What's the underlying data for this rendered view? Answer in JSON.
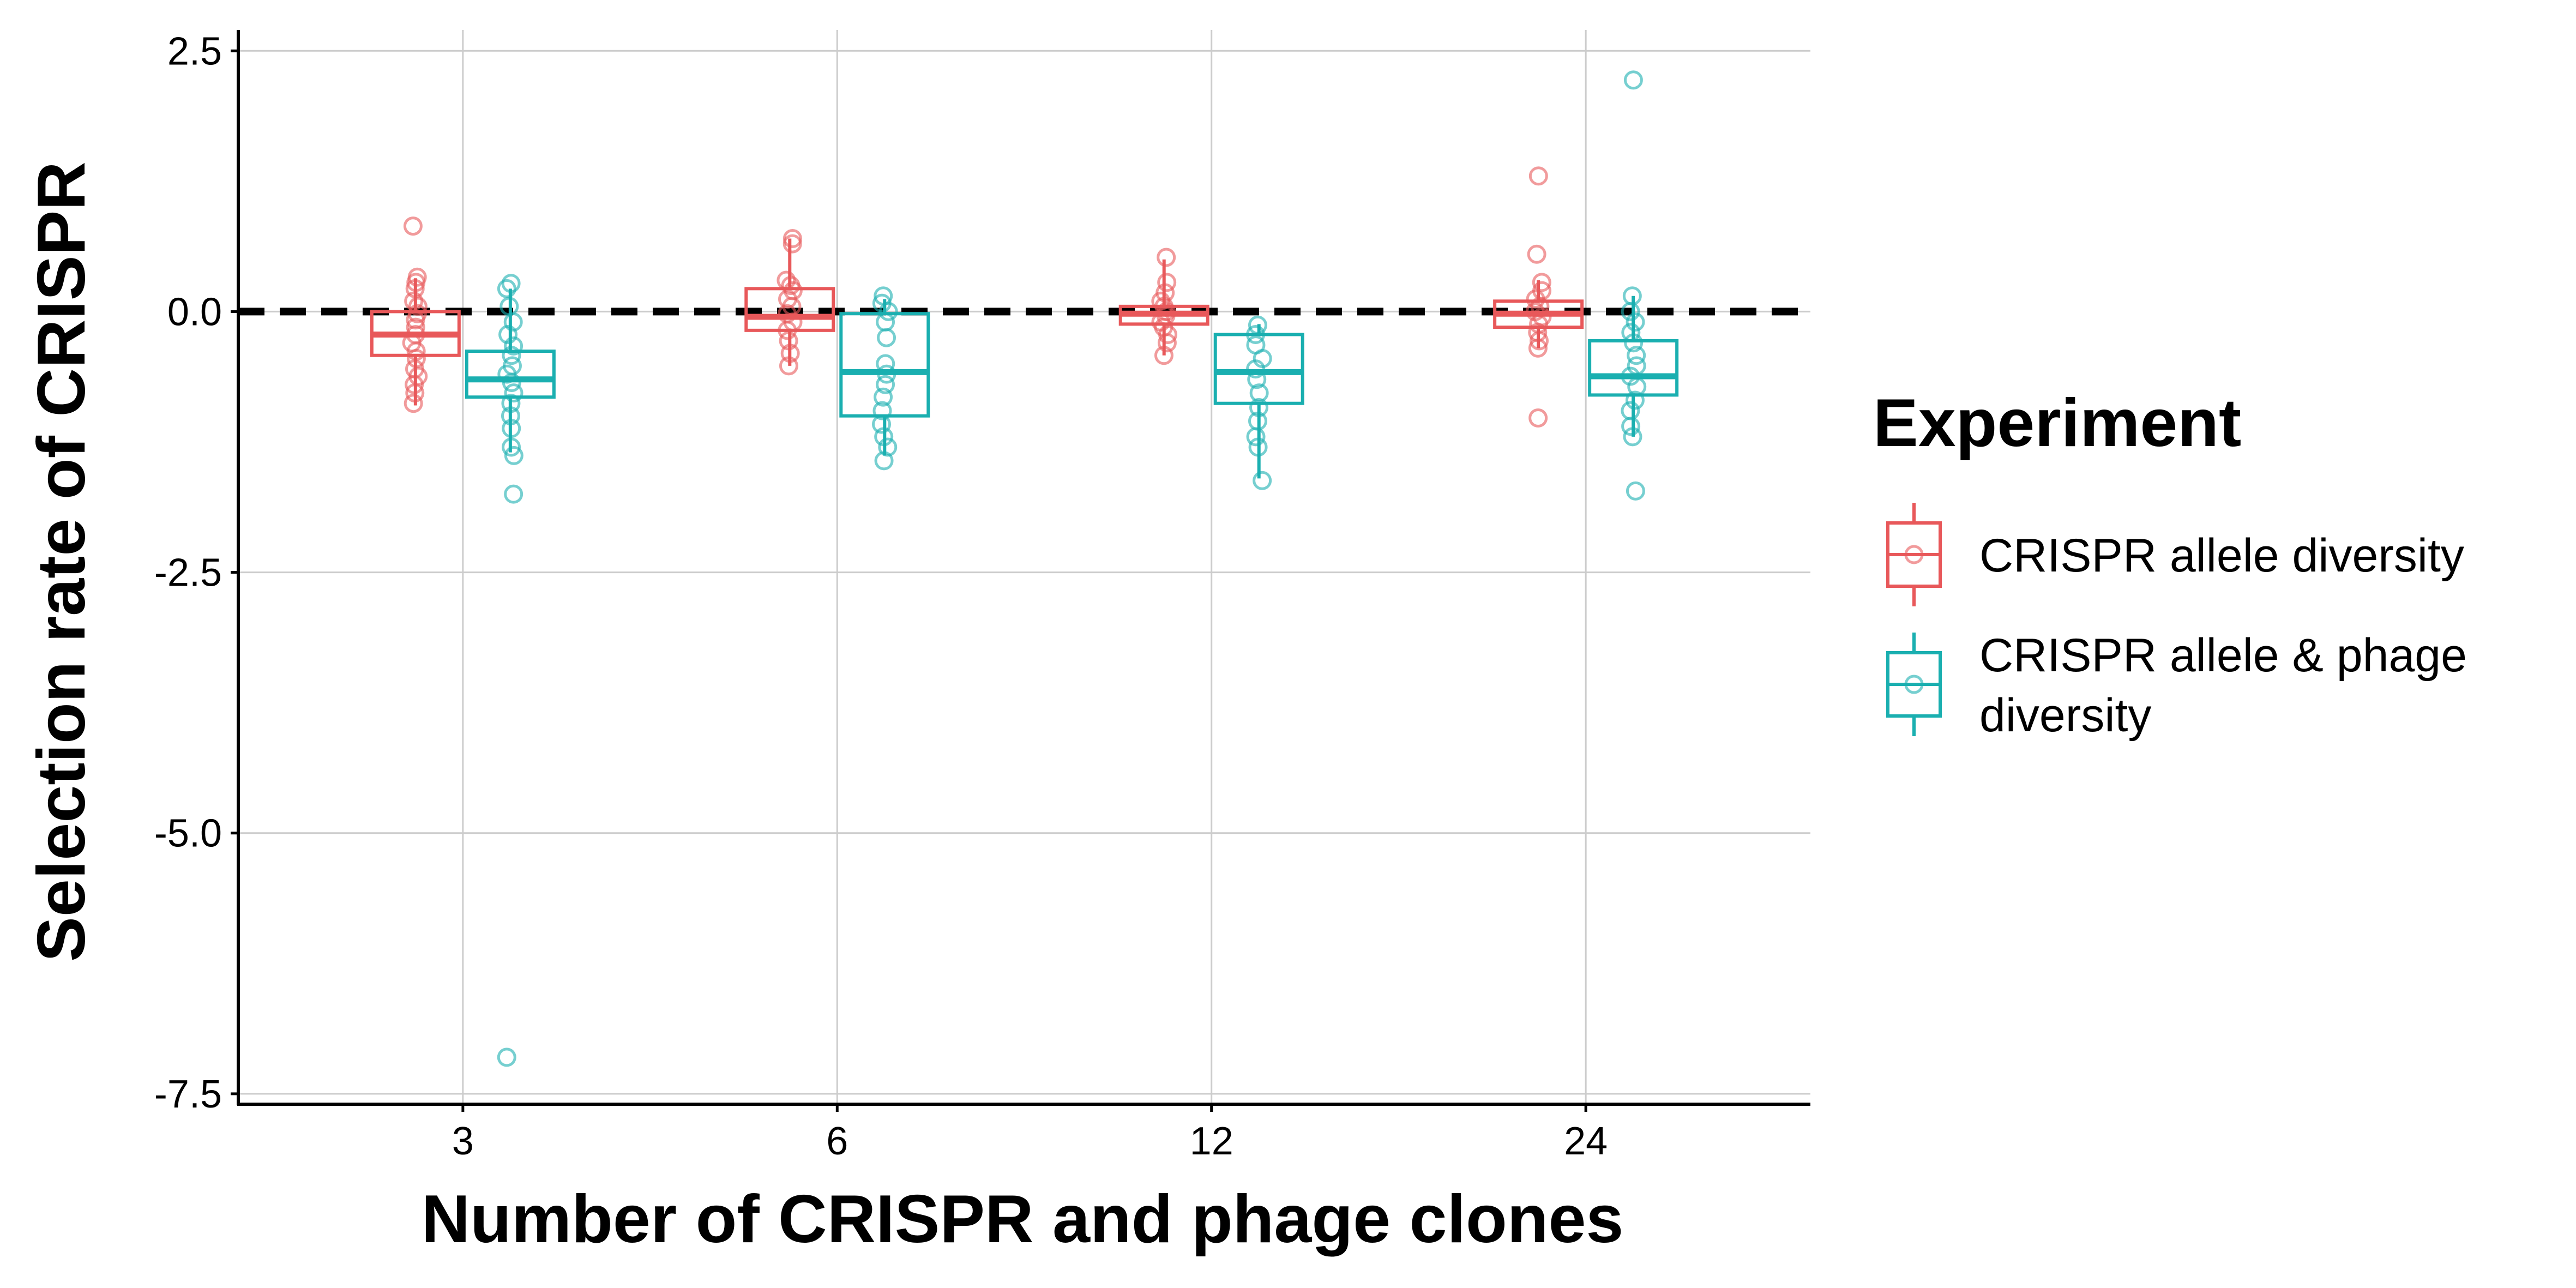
{
  "chart_data": {
    "type": "boxplot",
    "xlabel": "Number of CRISPR and phage clones",
    "ylabel": "Selection rate of CRISPR",
    "categories": [
      "3",
      "6",
      "12",
      "24"
    ],
    "ylim": [
      -7.6,
      2.7
    ],
    "yticks": [
      2.5,
      0.0,
      -2.5,
      -5.0,
      -7.5
    ],
    "ytick_labels": [
      "2.5",
      "0.0",
      "-2.5",
      "-5.0",
      "-7.5"
    ],
    "grid": true,
    "reference_line": {
      "y": 0,
      "style": "dashed",
      "color": "#000000"
    },
    "legend": {
      "title": "Experiment",
      "position": "right"
    },
    "series": [
      {
        "name": "CRISPR allele diversity",
        "legend_label": [
          "CRISPR allele diversity"
        ],
        "color": "#E8585A",
        "boxes": [
          {
            "category": "3",
            "q1": -0.42,
            "median": -0.22,
            "q3": 0.0,
            "whisker_low": -0.9,
            "whisker_high": 0.32,
            "points": [
              0.82,
              0.33,
              0.28,
              0.22,
              0.1,
              0.05,
              -0.02,
              -0.08,
              -0.15,
              -0.22,
              -0.3,
              -0.38,
              -0.45,
              -0.55,
              -0.62,
              -0.7,
              -0.78,
              -0.88
            ]
          },
          {
            "category": "6",
            "q1": -0.18,
            "median": -0.05,
            "q3": 0.22,
            "whisker_low": -0.52,
            "whisker_high": 0.7,
            "points": [
              0.7,
              0.65,
              0.3,
              0.25,
              0.2,
              0.12,
              0.05,
              -0.02,
              -0.1,
              -0.18,
              -0.28,
              -0.4,
              -0.52
            ]
          },
          {
            "category": "12",
            "q1": -0.12,
            "median": -0.02,
            "q3": 0.05,
            "whisker_low": -0.42,
            "whisker_high": 0.5,
            "points": [
              0.52,
              0.28,
              0.18,
              0.1,
              0.05,
              0.0,
              -0.04,
              -0.1,
              -0.15,
              -0.22,
              -0.3,
              -0.42
            ]
          },
          {
            "category": "24",
            "q1": -0.15,
            "median": -0.02,
            "q3": 0.1,
            "whisker_low": -0.35,
            "whisker_high": 0.3,
            "points": [
              1.3,
              0.55,
              0.28,
              0.2,
              0.12,
              0.05,
              0.0,
              -0.05,
              -0.12,
              -0.2,
              -0.28,
              -0.35,
              -1.02
            ]
          }
        ]
      },
      {
        "name": "CRISPR allele & phage diversity",
        "legend_label": [
          "CRISPR allele & phage",
          "diversity"
        ],
        "color": "#1AAFB0",
        "boxes": [
          {
            "category": "3",
            "q1": -0.82,
            "median": -0.65,
            "q3": -0.38,
            "whisker_low": -1.35,
            "whisker_high": 0.22,
            "points": [
              0.27,
              0.22,
              0.05,
              -0.1,
              -0.22,
              -0.33,
              -0.42,
              -0.52,
              -0.6,
              -0.68,
              -0.78,
              -0.88,
              -1.0,
              -1.12,
              -1.3,
              -1.38,
              -1.75,
              -7.15
            ]
          },
          {
            "category": "6",
            "q1": -1.0,
            "median": -0.58,
            "q3": -0.02,
            "whisker_low": -1.38,
            "whisker_high": 0.12,
            "points": [
              0.15,
              0.08,
              0.0,
              -0.1,
              -0.25,
              -0.5,
              -0.6,
              -0.7,
              -0.82,
              -0.95,
              -1.08,
              -1.2,
              -1.3,
              -1.43
            ]
          },
          {
            "category": "12",
            "q1": -0.88,
            "median": -0.58,
            "q3": -0.22,
            "whisker_low": -1.6,
            "whisker_high": -0.12,
            "points": [
              -0.13,
              -0.22,
              -0.32,
              -0.45,
              -0.55,
              -0.65,
              -0.78,
              -0.92,
              -1.05,
              -1.2,
              -1.3,
              -1.62
            ]
          },
          {
            "category": "24",
            "q1": -0.8,
            "median": -0.62,
            "q3": -0.28,
            "whisker_low": -1.2,
            "whisker_high": 0.15,
            "points": [
              2.22,
              0.15,
              0.0,
              -0.1,
              -0.2,
              -0.3,
              -0.42,
              -0.52,
              -0.62,
              -0.72,
              -0.85,
              -0.95,
              -1.1,
              -1.2,
              -1.72
            ]
          }
        ]
      }
    ]
  }
}
